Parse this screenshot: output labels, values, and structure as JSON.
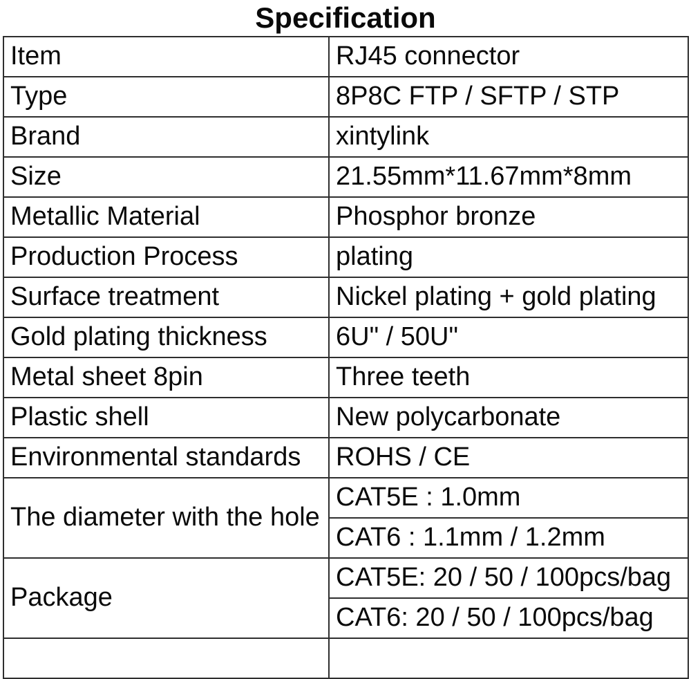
{
  "title": "Specification",
  "colors": {
    "background": "#ffffff",
    "text": "#0a0a0a",
    "border": "#2e2e2e"
  },
  "table": {
    "rows": [
      {
        "label": "Item",
        "values": [
          "RJ45 connector"
        ]
      },
      {
        "label": "Type",
        "values": [
          "8P8C FTP / SFTP / STP"
        ]
      },
      {
        "label": "Brand",
        "values": [
          "xintylink"
        ]
      },
      {
        "label": "Size",
        "values": [
          "21.55mm*11.67mm*8mm"
        ]
      },
      {
        "label": "Metallic Material",
        "values": [
          "Phosphor bronze"
        ]
      },
      {
        "label": "Production Process",
        "values": [
          "plating"
        ]
      },
      {
        "label": "Surface treatment",
        "values": [
          "Nickel plating + gold plating"
        ]
      },
      {
        "label": "Gold plating thickness",
        "values": [
          "6U\" / 50U\""
        ]
      },
      {
        "label": "Metal sheet 8pin",
        "values": [
          "Three teeth"
        ]
      },
      {
        "label": "Plastic shell",
        "values": [
          "New polycarbonate"
        ]
      },
      {
        "label": "Environmental standards",
        "values": [
          "ROHS / CE"
        ]
      },
      {
        "label": "The diameter with the hole",
        "values": [
          "CAT5E : 1.0mm",
          "CAT6 : 1.1mm / 1.2mm"
        ]
      },
      {
        "label": "Package",
        "values": [
          "CAT5E: 20 / 50 / 100pcs/bag",
          "CAT6: 20 / 50 / 100pcs/bag"
        ]
      }
    ]
  }
}
